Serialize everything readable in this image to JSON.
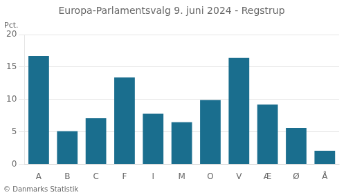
{
  "chart_data": {
    "type": "bar",
    "title": "Europa-Parlamentsvalg 9. juni 2024 - Regstrup",
    "ylabel": "Pct.",
    "footnote": "© Danmarks Statistik",
    "categories": [
      "A",
      "B",
      "C",
      "F",
      "I",
      "M",
      "O",
      "V",
      "Æ",
      "Ø",
      "Å"
    ],
    "values": [
      16.7,
      5.1,
      7.1,
      13.4,
      7.8,
      6.5,
      9.9,
      16.4,
      9.2,
      5.6,
      2.1
    ],
    "color": "#1a6e8e",
    "ylim": [
      0,
      20
    ],
    "yticks": [
      0,
      5,
      10,
      15,
      20
    ],
    "grid": true
  }
}
